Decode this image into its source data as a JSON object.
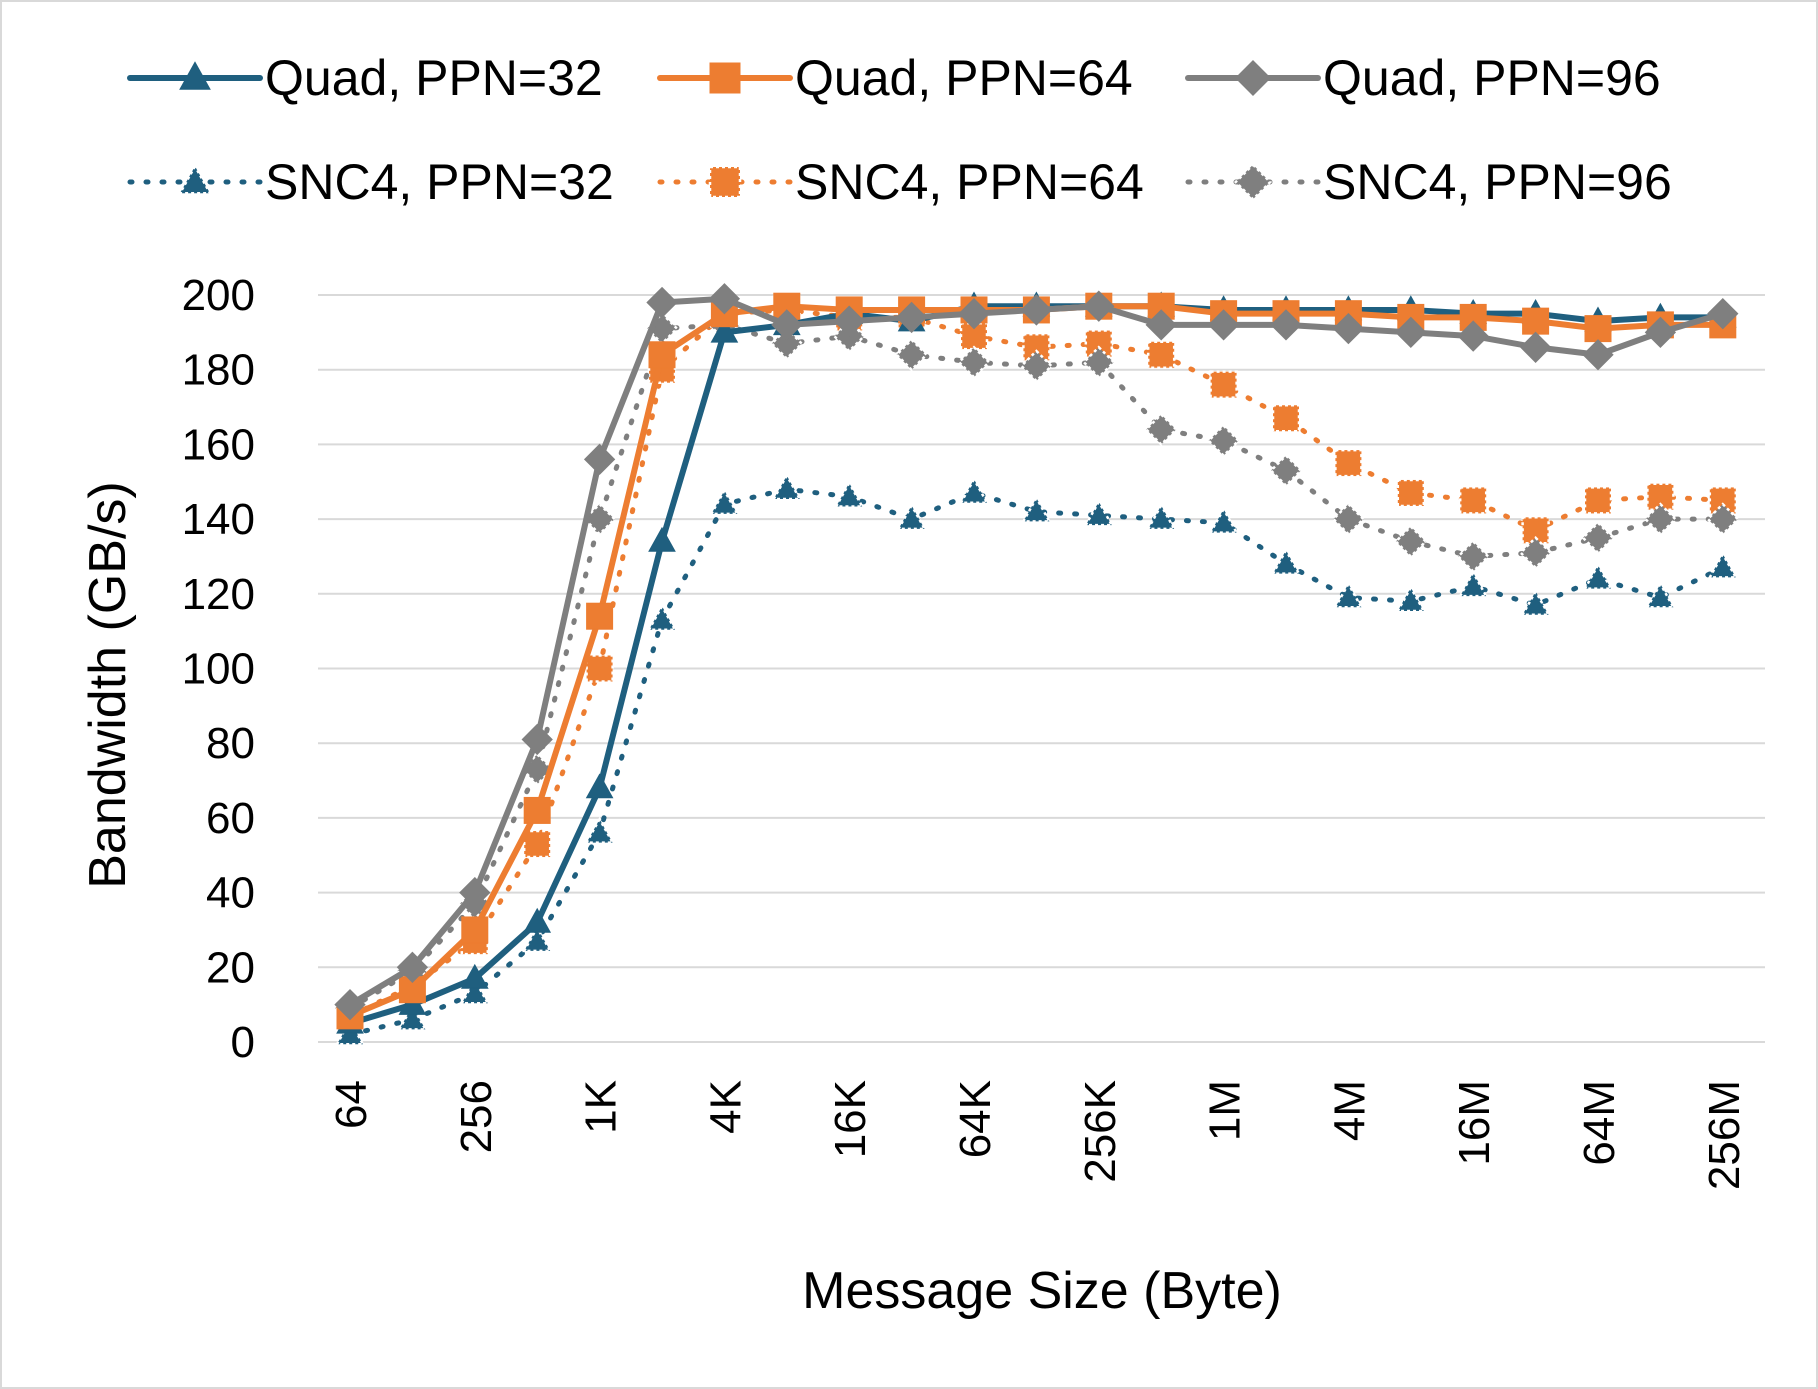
{
  "chart_data": {
    "type": "line",
    "title": "",
    "xlabel": "Message Size (Byte)",
    "ylabel": "Bandwidth (GB/s)",
    "ylim": [
      0,
      200
    ],
    "yticks": [
      0,
      20,
      40,
      60,
      80,
      100,
      120,
      140,
      160,
      180,
      200
    ],
    "x": [
      "64",
      "128",
      "256",
      "512",
      "1K",
      "2K",
      "4K",
      "8K",
      "16K",
      "32K",
      "64K",
      "128K",
      "256K",
      "512K",
      "1M",
      "2M",
      "4M",
      "8M",
      "16M",
      "32M",
      "64M",
      "128M",
      "256M"
    ],
    "x_tick_labels": [
      "64",
      "256",
      "1K",
      "4K",
      "16K",
      "64K",
      "256K",
      "1M",
      "4M",
      "16M",
      "64M",
      "256M"
    ],
    "grid": true,
    "legend_position": "top",
    "series": [
      {
        "name": "Quad, PPN=32",
        "color": "#1f5f7f",
        "line": "solid",
        "marker": "triangle",
        "values": [
          5,
          10,
          17,
          32,
          68,
          134,
          190,
          192,
          195,
          193,
          197,
          197,
          197,
          197,
          196,
          196,
          196,
          196,
          195,
          195,
          193,
          194,
          194
        ]
      },
      {
        "name": "Quad, PPN=64",
        "color": "#ed7d31",
        "line": "solid",
        "marker": "square",
        "values": [
          7,
          14,
          30,
          62,
          114,
          184,
          195,
          197,
          196,
          196,
          196,
          196,
          197,
          197,
          195,
          195,
          195,
          194,
          194,
          193,
          191,
          192,
          192
        ]
      },
      {
        "name": "Quad, PPN=96",
        "color": "#7f7f7f",
        "line": "solid",
        "marker": "diamond",
        "values": [
          10,
          20,
          40,
          81,
          156,
          198,
          199,
          192,
          193,
          194,
          195,
          196,
          197,
          192,
          192,
          192,
          191,
          190,
          189,
          186,
          184,
          190,
          195
        ]
      },
      {
        "name": "SNC4, PPN=32",
        "color": "#1f5f7f",
        "line": "dotted",
        "marker": "triangle",
        "values": [
          2,
          6,
          13,
          27,
          56,
          113,
          144,
          148,
          146,
          140,
          147,
          142,
          141,
          140,
          139,
          128,
          119,
          118,
          122,
          117,
          124,
          119,
          127
        ]
      },
      {
        "name": "SNC4, PPN=64",
        "color": "#ed7d31",
        "line": "dotted",
        "marker": "square",
        "values": [
          7,
          15,
          27,
          53,
          100,
          180,
          195,
          196,
          194,
          194,
          189,
          186,
          187,
          184,
          176,
          167,
          155,
          147,
          145,
          137,
          145,
          146,
          145
        ]
      },
      {
        "name": "SNC4, PPN=96",
        "color": "#7f7f7f",
        "line": "dotted",
        "marker": "diamond",
        "values": [
          9,
          19,
          37,
          73,
          140,
          191,
          192,
          187,
          189,
          184,
          182,
          181,
          182,
          164,
          161,
          153,
          140,
          134,
          130,
          131,
          135,
          140,
          140
        ]
      }
    ]
  }
}
